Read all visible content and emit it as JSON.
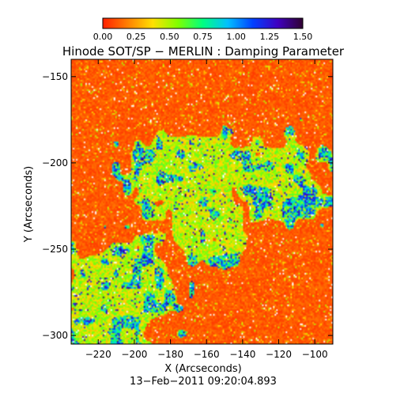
{
  "chart_data": {
    "type": "heatmap",
    "title": "Hinode SOT/SP − MERLIN : Damping Parameter",
    "xlabel": "X (Arcseconds)",
    "ylabel": "Y (Arcseconds)",
    "timestamp": "13−Feb−2011 09:20:04.893",
    "xlim": [
      -235,
      -90
    ],
    "ylim": [
      -305,
      -140
    ],
    "xticks": [
      -220,
      -200,
      -180,
      -160,
      -140,
      -120,
      -100
    ],
    "xtick_labels": [
      "−220",
      "−200",
      "−180",
      "−160",
      "−140",
      "−120",
      "−100"
    ],
    "yticks": [
      -150,
      -200,
      -250,
      -300
    ],
    "ytick_labels": [
      "−150",
      "−200",
      "−250",
      "−300"
    ],
    "colorbar": {
      "range": [
        0.0,
        1.5
      ],
      "ticks": [
        0.0,
        0.25,
        0.5,
        0.75,
        1.0,
        1.25,
        1.5
      ],
      "tick_labels": [
        "0.00",
        "0.25",
        "0.50",
        "0.75",
        "1.00",
        "1.25",
        "1.50"
      ],
      "colors": [
        "#ff2000",
        "#ff8000",
        "#ffe000",
        "#80ff00",
        "#00ff80",
        "#00c0ff",
        "#0040ff",
        "#4000c0",
        "#300030"
      ]
    },
    "grid": false,
    "description_regions": {
      "background_value": 0.05,
      "region_values": [
        {
          "x": -160,
          "y": -230,
          "value": 0.45
        },
        {
          "x": -210,
          "y": -270,
          "value": 0.55
        },
        {
          "x": -125,
          "y": -210,
          "value": 0.5
        },
        {
          "x": -170,
          "y": -205,
          "value": 0.4
        },
        {
          "x": -215,
          "y": -285,
          "value": 0.45
        }
      ]
    }
  }
}
